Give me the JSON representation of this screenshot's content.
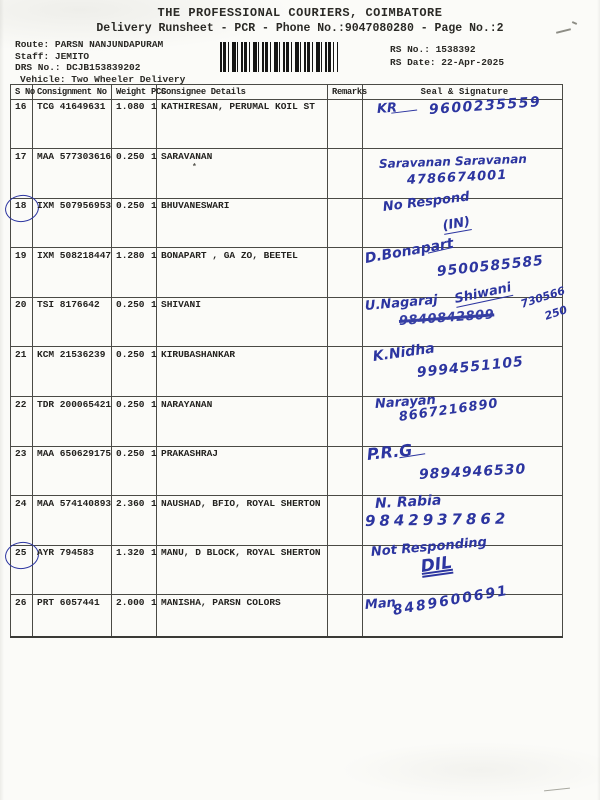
{
  "header": {
    "title": "THE PROFESSIONAL COURIERS, COIMBATORE",
    "subtitle": "Delivery Runsheet - PCR - Phone No.:9047080280 - Page No.:2",
    "route_line": "Route: PARSN NANJUNDAPURAM",
    "staff_line": "Staff: JEMITO",
    "drs_line": "DRS No.: DCJB153839202",
    "vehicle_line": "Vehicle: Two Wheeler Delivery",
    "rs_no_line": "RS No.: 1538392",
    "rs_date_line": "RS Date: 22-Apr-2025",
    "barcode_icon": "barcode"
  },
  "pen_color": "#2c35a0",
  "table": {
    "header": {
      "sno": "S No",
      "consignment": "Consignment No",
      "weight": "Weight",
      "pcs": "PCS",
      "consignee": "Consignee Details",
      "remarks": "Remarks",
      "signature": "Seal & Signature"
    },
    "rows": [
      {
        "sno": "16",
        "consignment": "TCG 41649631",
        "weight": "1.080",
        "pcs": "1",
        "consignee": "KATHIRESAN, PERUMAL KOIL ST",
        "remarks": "",
        "circled": false,
        "signature": [
          "KR",
          "9600235559"
        ]
      },
      {
        "sno": "17",
        "consignment": "MAA 577303616",
        "weight": "0.250",
        "pcs": "1",
        "consignee": "SARAVANAN",
        "remarks": "",
        "circled": false,
        "signature": [
          "Saravanan Saravanan",
          "4786674001"
        ]
      },
      {
        "sno": "18",
        "consignment": "IXM 507956953",
        "weight": "0.250",
        "pcs": "1",
        "consignee": "BHUVANESWARI",
        "remarks": "",
        "circled": true,
        "signature": [
          "No Respond",
          "(IN)"
        ]
      },
      {
        "sno": "19",
        "consignment": "IXM 508218447",
        "weight": "1.280",
        "pcs": "1",
        "consignee": "BONAPART , GA ZO, BEETEL",
        "remarks": "",
        "circled": false,
        "signature": [
          "D.Bonapart",
          "9500585585"
        ]
      },
      {
        "sno": "20",
        "consignment": "TSI 8176642",
        "weight": "0.250",
        "pcs": "1",
        "consignee": "SHIVANI",
        "remarks": "",
        "circled": false,
        "signature": [
          "U.Nagaraj",
          "Shiwani",
          "9840842809",
          "730566",
          "250"
        ]
      },
      {
        "sno": "21",
        "consignment": "KCM 21536239",
        "weight": "0.250",
        "pcs": "1",
        "consignee": "KIRUBASHANKAR",
        "remarks": "",
        "circled": false,
        "signature": [
          "K.Nidha",
          "9994551105"
        ]
      },
      {
        "sno": "22",
        "consignment": "TDR 200065421",
        "weight": "0.250",
        "pcs": "1",
        "consignee": "NARAYANAN",
        "remarks": "",
        "circled": false,
        "signature": [
          "Narayan",
          "8667216890"
        ]
      },
      {
        "sno": "23",
        "consignment": "MAA 650629175",
        "weight": "0.250",
        "pcs": "1",
        "consignee": "PRAKASHRAJ",
        "remarks": "",
        "circled": false,
        "signature": [
          "P.R.G",
          "9894946530"
        ]
      },
      {
        "sno": "24",
        "consignment": "MAA 574140893",
        "weight": "2.360",
        "pcs": "1",
        "consignee": "NAUSHAD, BFIO, ROYAL SHERTON",
        "remarks": "",
        "circled": false,
        "signature": [
          "N. Rabia",
          "9842937862"
        ]
      },
      {
        "sno": "25",
        "consignment": "AYR 794583",
        "weight": "1.320",
        "pcs": "1",
        "consignee": "MANU, D BLOCK, ROYAL SHERTON",
        "remarks": "",
        "circled": true,
        "signature": [
          "Not Responding",
          "DIL"
        ]
      },
      {
        "sno": "26",
        "consignment": "PRT 6057441",
        "weight": "2.000",
        "pcs": "1",
        "consignee": "MANISHA, PARSN COLORS",
        "remarks": "",
        "circled": false,
        "signature": [
          "Man",
          "8489600691"
        ]
      }
    ]
  }
}
